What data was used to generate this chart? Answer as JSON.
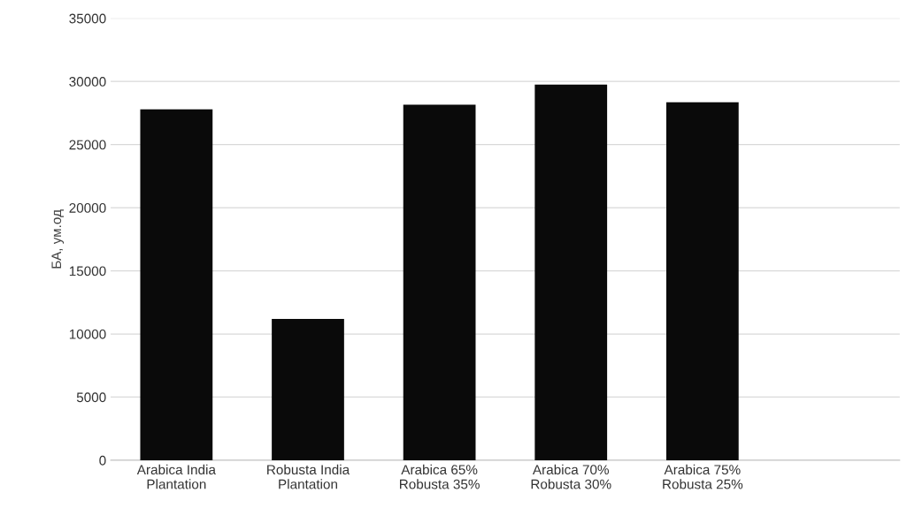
{
  "chart_data": {
    "type": "bar",
    "ylabel": "БА, ум.од",
    "categories": [
      "Arabica India\nPlantation",
      "Robusta India\nPlantation",
      "Arabica 65%\nRobusta 35%",
      "Arabica 70%\nRobusta 30%",
      "Arabica 75%\nRobusta 25%"
    ],
    "values": [
      27800,
      11200,
      28150,
      29750,
      28350
    ],
    "color": "#0a0a0a",
    "ylim": [
      0,
      35000
    ],
    "yticks": [
      0,
      5000,
      10000,
      15000,
      20000,
      25000,
      30000,
      35000
    ],
    "grid": "y"
  }
}
